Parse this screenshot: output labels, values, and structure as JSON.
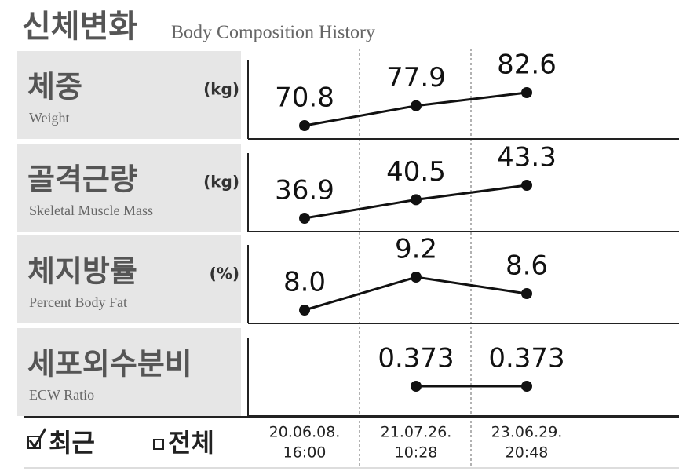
{
  "header": {
    "title": "신체변화",
    "subtitle": "Body Composition History"
  },
  "columns": [
    {
      "date": "20.06.08.",
      "time": "16:00"
    },
    {
      "date": "21.07.26.",
      "time": "10:28"
    },
    {
      "date": "23.06.29.",
      "time": "20:48"
    }
  ],
  "rows": [
    {
      "label": "체중",
      "label_en": "Weight",
      "unit": "(kg)",
      "values": [
        70.8,
        77.9,
        82.6
      ]
    },
    {
      "label": "골격근량",
      "label_en": "Skeletal Muscle Mass",
      "unit": "(kg)",
      "values": [
        36.9,
        40.5,
        43.3
      ]
    },
    {
      "label": "체지방률",
      "label_en": "Percent Body Fat",
      "unit": "(%)",
      "values": [
        8,
        9.2,
        8.6
      ],
      "value_labels": [
        "8.0",
        "9.2",
        "8.6"
      ]
    },
    {
      "label": "세포외수분비",
      "label_en": "ECW Ratio",
      "values": [
        null,
        0.373,
        0.373
      ]
    }
  ],
  "footer": {
    "recent": "최근",
    "all": "전체"
  }
}
